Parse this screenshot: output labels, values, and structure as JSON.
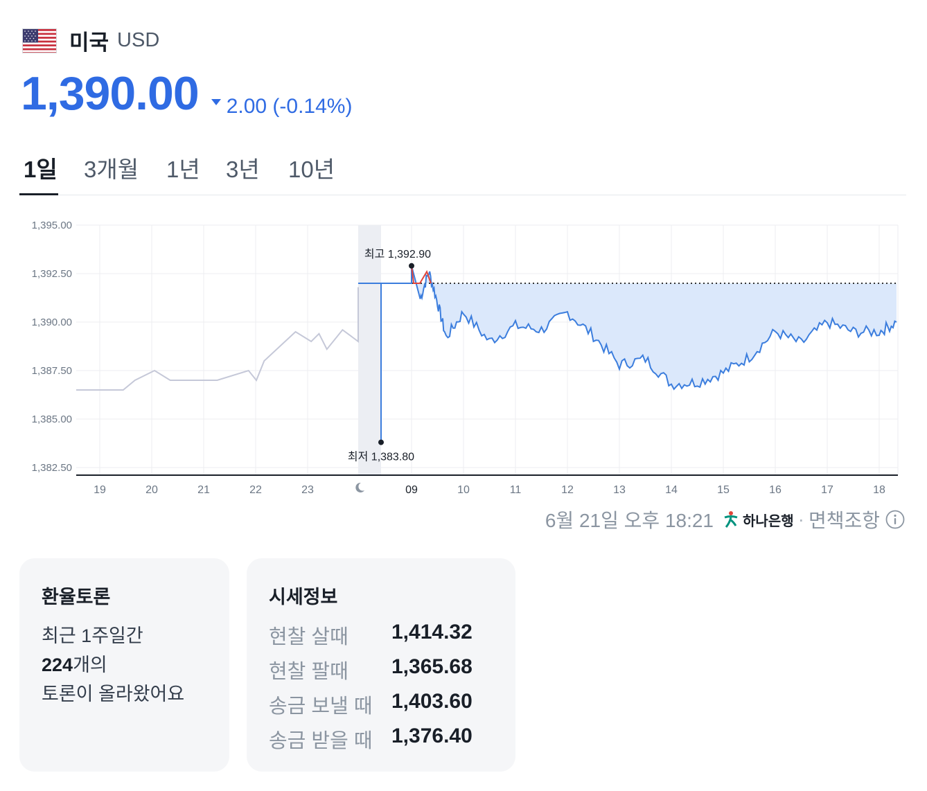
{
  "header": {
    "flag_icon": "us-flag-icon",
    "country": "미국",
    "currency": "USD"
  },
  "price": {
    "value": "1,390.00",
    "change": "2.00 (-0.14%)",
    "direction": "down",
    "color": "#2f6be3"
  },
  "tabs": [
    {
      "label": "1일",
      "active": true
    },
    {
      "label": "3개월",
      "active": false
    },
    {
      "label": "1년",
      "active": false
    },
    {
      "label": "3년",
      "active": false
    },
    {
      "label": "10년",
      "active": false
    }
  ],
  "chart_data": {
    "type": "line",
    "ylim": [
      1382.5,
      1395.0
    ],
    "y_ticks": [
      "1,395.00",
      "1,392.50",
      "1,390.00",
      "1,387.50",
      "1,385.00",
      "1,382.50"
    ],
    "x_ticks": [
      "19",
      "20",
      "21",
      "22",
      "23",
      "moon-icon",
      "09",
      "10",
      "11",
      "12",
      "13",
      "14",
      "15",
      "16",
      "17",
      "18"
    ],
    "previous_close": 1392.0,
    "high_label": "최고 1,392.90",
    "high_value": 1392.9,
    "low_label": "최저 1,383.80",
    "low_value": 1383.8,
    "colors": {
      "prior_session": "#c5c8d8",
      "today_line": "#3b7ddd",
      "above_close": "#e0453a",
      "fill": "#dbe8fb",
      "night_band": "#eceef3"
    },
    "series": [
      {
        "segment": "prior",
        "x": [
          "18:00",
          "19:00",
          "19:15",
          "19:40",
          "20:00",
          "21:00",
          "21:40",
          "21:50",
          "22:00",
          "22:40",
          "23:00",
          "23:10",
          "23:20",
          "23:40",
          "00:00"
        ],
        "values": [
          1386.5,
          1386.5,
          1387.0,
          1387.5,
          1387.0,
          1387.0,
          1387.5,
          1387.0,
          1388.0,
          1389.5,
          1389.0,
          1389.4,
          1388.6,
          1389.6,
          1389.0
        ]
      },
      {
        "segment": "today",
        "x": [
          "09:00",
          "09:10",
          "09:20",
          "09:30",
          "09:40",
          "10:00",
          "10:30",
          "11:00",
          "11:30",
          "12:00",
          "12:30",
          "13:00",
          "13:30",
          "14:00",
          "14:30",
          "15:00",
          "15:30",
          "16:00",
          "16:30",
          "17:00",
          "17:30",
          "18:00",
          "18:20"
        ],
        "values": [
          1392.9,
          1391.2,
          1392.6,
          1391.0,
          1389.2,
          1390.5,
          1389.0,
          1389.8,
          1389.6,
          1390.5,
          1389.3,
          1387.8,
          1388.1,
          1386.8,
          1386.9,
          1387.4,
          1388.2,
          1389.5,
          1388.9,
          1390.0,
          1389.5,
          1389.5,
          1390.0
        ]
      }
    ]
  },
  "source": {
    "timestamp": "6월 21일 오후 18:21",
    "bank": "하나은행",
    "separator": "·",
    "disclaimer": "면책조항"
  },
  "discussion_card": {
    "title": "환율토론",
    "line1": "최근 1주일간",
    "count": "224",
    "line2_suffix": "개의",
    "line3": "토론이 올라왔어요"
  },
  "quote_card": {
    "title": "시세정보",
    "rows": [
      {
        "label": "현찰 살때",
        "value": "1,414.32"
      },
      {
        "label": "현찰 팔때",
        "value": "1,365.68"
      },
      {
        "label": "송금 보낼 때",
        "value": "1,403.60"
      },
      {
        "label": "송금 받을 때",
        "value": "1,376.40"
      }
    ]
  }
}
